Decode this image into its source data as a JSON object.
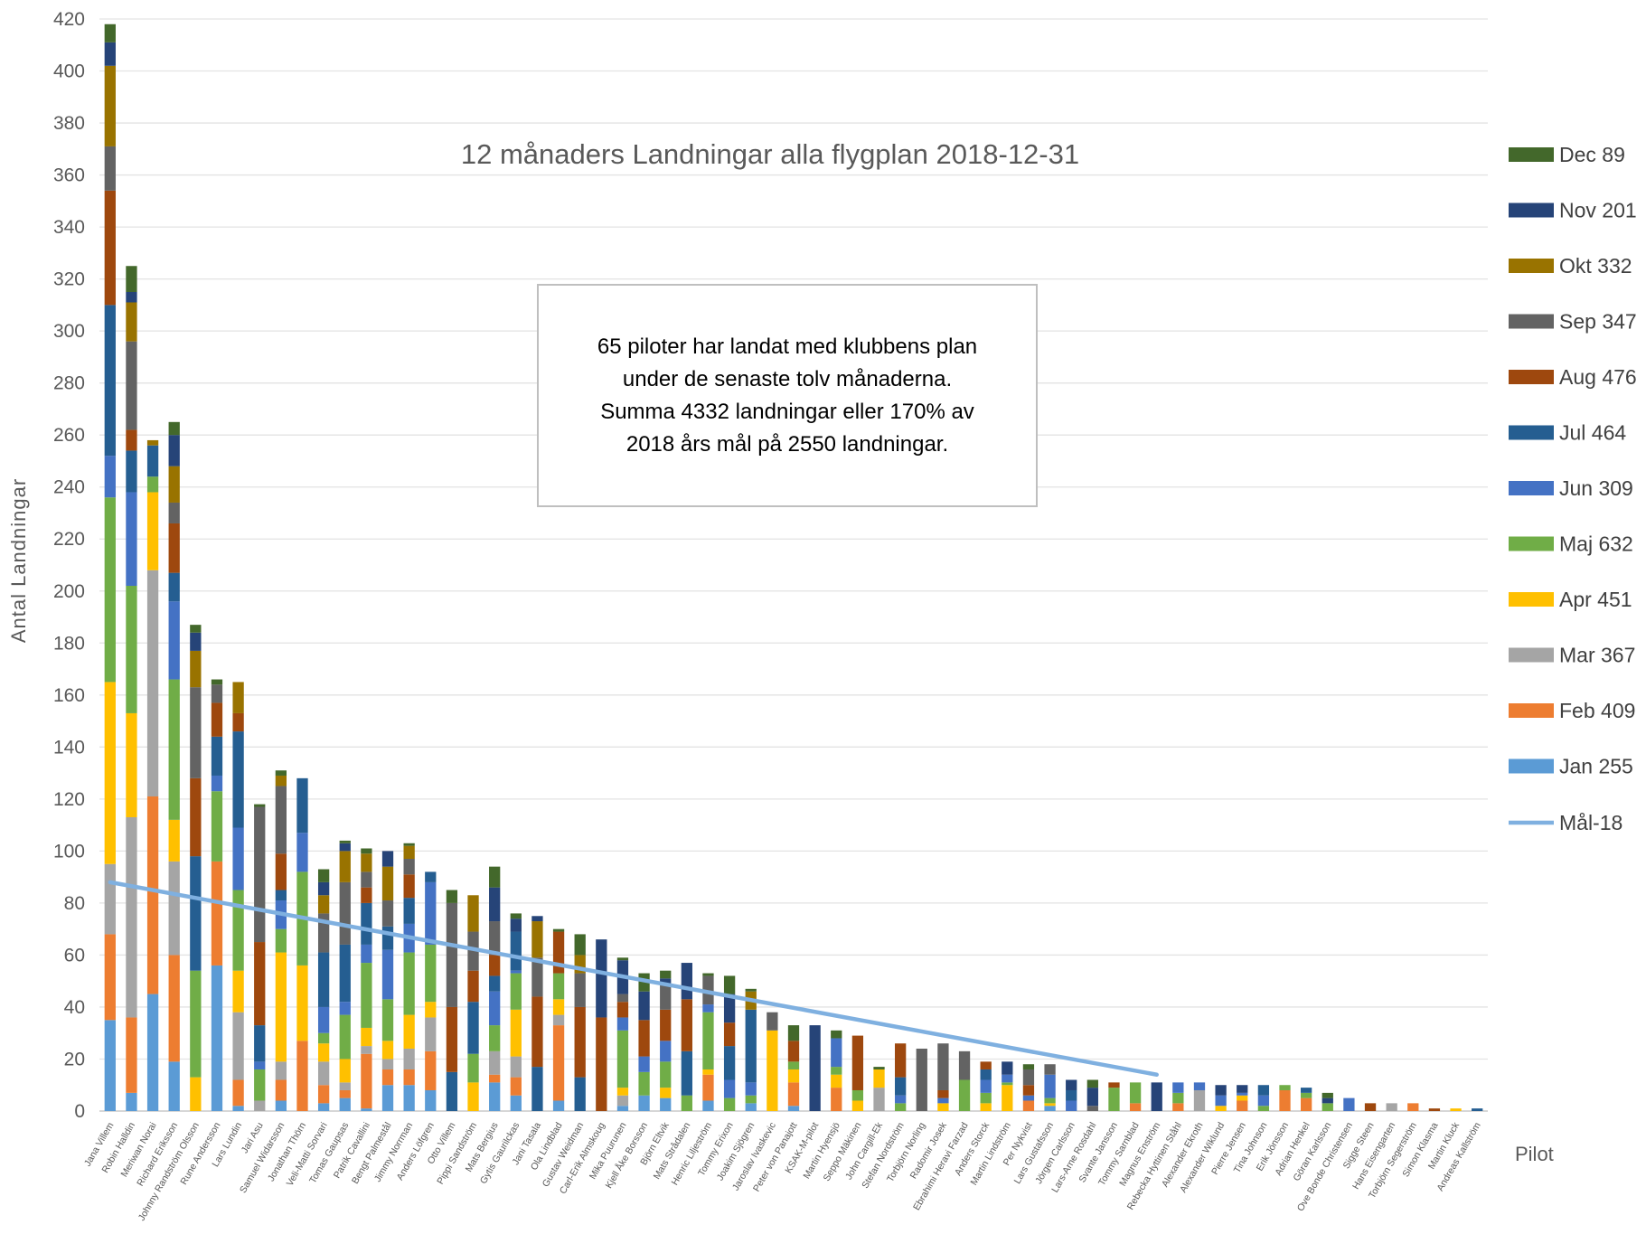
{
  "chart_data": {
    "type": "bar",
    "stacked": true,
    "title": "12 månaders Landningar alla flygplan 2018-12-31",
    "xlabel": "Pilot",
    "ylabel": "Antal Landningar",
    "ylim": [
      0,
      420
    ],
    "yticks": [
      0,
      20,
      40,
      60,
      80,
      100,
      120,
      140,
      160,
      180,
      200,
      220,
      240,
      260,
      280,
      300,
      320,
      340,
      360,
      380,
      400,
      420
    ],
    "grid": true,
    "legend_position": "right",
    "annotation": [
      "65 piloter har landat med klubbens plan",
      "under de senaste tolv månaderna.",
      "Summa 4332 landningar eller 170% av",
      "2018 års mål på 2550 landningar."
    ],
    "categories": [
      "Jana Villem",
      "Robin Halldin",
      "Meriwan Norai",
      "Richard Eriksson",
      "Johnny Randström Olsson",
      "Rune Andersson",
      "Lars Lundin",
      "Jari Asu",
      "Samuel Widarsson",
      "Jonathan Thörn",
      "Veli-Matti Sorvari",
      "Tomas Gaupsas",
      "Patrik Cavallini",
      "Bengt Palmestål",
      "Jimmy Norrman",
      "Anders Löfgren",
      "Otto Villem",
      "Pippi Sandström",
      "Mats Bergius",
      "Gytis Gaurilckas",
      "Jani Tasala",
      "Ola Lindblad",
      "Gustav Weidman",
      "Carl-Erik Almskoug",
      "Mika Puurunen",
      "Kjell Åke Borsson",
      "Björn Eltvik",
      "Mats Strådalen",
      "Henric Liljeström",
      "Tommy Erixon",
      "Joakim Sjögren",
      "Jaroslav Ivaskevic",
      "Peter von Panajott",
      "KSAK-M-pilot",
      "Martin Hyensjö",
      "Seppo Mäkinen",
      "John Cargill-Ek",
      "Stefan Nordström",
      "Torbjörn Norling",
      "Radomir Josek",
      "Ebrahimi Heravi Farzad",
      "Anders Storck",
      "Martin Lindström",
      "Per Nykvist",
      "Lars Gustafsson",
      "Jörgen Carlsson",
      "Lars-Arne Rosdahl",
      "Svante Jansson",
      "Tommy Sarnblad",
      "Magnus Enström",
      "Rebecka Hyttinen Ståhl",
      "Alexander Ekroth",
      "Alexander Wiklund",
      "Pierre Jensen",
      "Tina Johnson",
      "Erik Jönsson",
      "Adrian Henkel",
      "Göran Karlsson",
      "Ove Bonde Christensen",
      "Sigge Steen",
      "Hans Eisengarten",
      "Torbjörn Segerström",
      "Simon Klasma",
      "Martin Kluck",
      "Andreas Kallström"
    ],
    "series": [
      {
        "name": "Jan 255",
        "color": "#5b9bd5",
        "values": [
          35,
          7,
          45,
          19,
          0,
          56,
          2,
          0,
          4,
          0,
          3,
          5,
          1,
          10,
          10,
          8,
          0,
          0,
          11,
          6,
          0,
          4,
          0,
          0,
          2,
          6,
          5,
          0,
          4,
          0,
          3,
          0,
          2,
          0,
          0,
          0,
          0,
          0,
          0,
          0,
          0,
          0,
          0,
          0,
          2,
          0,
          0,
          0,
          0,
          0,
          0,
          0,
          0,
          0,
          0,
          0,
          0,
          0,
          0,
          0,
          0,
          0,
          0,
          0,
          0
        ]
      },
      {
        "name": "Feb 409",
        "color": "#ed7d31",
        "values": [
          33,
          29,
          76,
          41,
          0,
          40,
          10,
          0,
          8,
          27,
          7,
          3,
          21,
          6,
          6,
          15,
          0,
          0,
          3,
          7,
          0,
          29,
          0,
          0,
          0,
          0,
          0,
          0,
          10,
          0,
          0,
          0,
          9,
          0,
          9,
          0,
          0,
          0,
          0,
          0,
          0,
          0,
          0,
          4,
          0,
          0,
          0,
          0,
          3,
          0,
          3,
          0,
          0,
          4,
          0,
          8,
          5,
          0,
          0,
          0,
          0,
          3,
          0,
          0,
          0
        ]
      },
      {
        "name": "Mar 367",
        "color": "#a5a5a5",
        "values": [
          27,
          77,
          87,
          36,
          0,
          0,
          26,
          4,
          7,
          0,
          9,
          3,
          3,
          4,
          8,
          13,
          0,
          0,
          9,
          8,
          0,
          4,
          0,
          0,
          4,
          0,
          0,
          0,
          0,
          0,
          0,
          0,
          0,
          0,
          0,
          0,
          9,
          0,
          0,
          0,
          0,
          0,
          0,
          0,
          0,
          0,
          0,
          0,
          0,
          0,
          0,
          8,
          0,
          0,
          0,
          0,
          0,
          0,
          0,
          0,
          3,
          0,
          0,
          0,
          0
        ]
      },
      {
        "name": "Apr 451",
        "color": "#ffc000",
        "values": [
          70,
          40,
          30,
          16,
          13,
          0,
          16,
          0,
          42,
          29,
          7,
          9,
          7,
          7,
          13,
          6,
          0,
          11,
          0,
          18,
          0,
          6,
          0,
          0,
          3,
          0,
          4,
          0,
          2,
          0,
          0,
          31,
          5,
          0,
          5,
          4,
          7,
          0,
          0,
          3,
          0,
          3,
          10,
          0,
          1,
          0,
          0,
          0,
          0,
          0,
          0,
          0,
          2,
          2,
          0,
          0,
          0,
          0,
          0,
          0,
          0,
          0,
          0,
          1,
          0
        ]
      },
      {
        "name": "Maj 632",
        "color": "#70ad47",
        "values": [
          71,
          49,
          6,
          54,
          41,
          27,
          31,
          12,
          9,
          36,
          4,
          17,
          25,
          16,
          24,
          22,
          0,
          11,
          10,
          14,
          0,
          10,
          0,
          0,
          22,
          9,
          10,
          6,
          22,
          5,
          3,
          0,
          3,
          0,
          3,
          4,
          0,
          3,
          0,
          0,
          12,
          4,
          1,
          0,
          2,
          0,
          0,
          9,
          8,
          0,
          4,
          0,
          0,
          0,
          2,
          2,
          2,
          3,
          0,
          0,
          0,
          0,
          0,
          0,
          0
        ]
      },
      {
        "name": "Jun 309",
        "color": "#4472c4",
        "values": [
          16,
          36,
          0,
          30,
          0,
          6,
          24,
          3,
          11,
          15,
          10,
          5,
          7,
          19,
          11,
          24,
          0,
          0,
          13,
          1,
          0,
          0,
          0,
          0,
          5,
          6,
          8,
          0,
          3,
          7,
          5,
          0,
          0,
          0,
          11,
          0,
          0,
          3,
          0,
          2,
          0,
          5,
          3,
          2,
          9,
          4,
          0,
          0,
          0,
          0,
          4,
          3,
          4,
          1,
          4,
          0,
          0,
          0,
          5,
          0,
          0,
          0,
          0,
          0,
          0
        ]
      },
      {
        "name": "Jul 464",
        "color": "#255e91",
        "values": [
          58,
          16,
          12,
          11,
          44,
          15,
          37,
          14,
          4,
          21,
          21,
          22,
          16,
          9,
          10,
          4,
          15,
          20,
          6,
          15,
          17,
          0,
          13,
          0,
          0,
          0,
          0,
          17,
          0,
          13,
          28,
          0,
          0,
          0,
          0,
          0,
          0,
          7,
          0,
          0,
          0,
          4,
          0,
          0,
          0,
          4,
          0,
          0,
          0,
          0,
          0,
          0,
          0,
          0,
          4,
          0,
          2,
          0,
          0,
          0,
          0,
          0,
          0,
          0,
          1
        ]
      },
      {
        "name": "Aug 476",
        "color": "#9e480e",
        "values": [
          44,
          8,
          0,
          19,
          30,
          13,
          7,
          32,
          14,
          0,
          0,
          0,
          6,
          0,
          9,
          0,
          25,
          12,
          8,
          0,
          27,
          16,
          27,
          36,
          6,
          14,
          12,
          20,
          0,
          9,
          0,
          0,
          8,
          0,
          0,
          21,
          0,
          13,
          0,
          3,
          0,
          3,
          0,
          4,
          0,
          0,
          0,
          2,
          0,
          0,
          0,
          0,
          0,
          0,
          0,
          0,
          0,
          0,
          0,
          3,
          0,
          0,
          1,
          0,
          0
        ]
      },
      {
        "name": "Sep 347",
        "color": "#636363",
        "values": [
          17,
          34,
          0,
          8,
          35,
          7,
          0,
          52,
          26,
          0,
          15,
          24,
          6,
          10,
          6,
          0,
          40,
          15,
          13,
          0,
          15,
          0,
          13,
          0,
          3,
          0,
          10,
          0,
          11,
          0,
          0,
          7,
          0,
          0,
          0,
          0,
          0,
          0,
          24,
          18,
          11,
          0,
          0,
          6,
          4,
          0,
          2,
          0,
          0,
          0,
          0,
          0,
          0,
          0,
          0,
          0,
          0,
          0,
          0,
          0,
          0,
          0,
          0,
          0,
          0
        ]
      },
      {
        "name": "Okt 332",
        "color": "#997300",
        "values": [
          31,
          15,
          2,
          14,
          14,
          0,
          12,
          0,
          4,
          0,
          7,
          12,
          7,
          13,
          5,
          0,
          0,
          14,
          0,
          0,
          14,
          0,
          7,
          0,
          0,
          0,
          0,
          0,
          0,
          0,
          7,
          0,
          0,
          0,
          0,
          0,
          0,
          0,
          0,
          0,
          0,
          0,
          0,
          0,
          0,
          0,
          0,
          0,
          0,
          0,
          0,
          0,
          0,
          0,
          0,
          0,
          0,
          0,
          0,
          0,
          0,
          0,
          0,
          0,
          0
        ]
      },
      {
        "name": "Nov 201",
        "color": "#264478",
        "values": [
          9,
          4,
          0,
          12,
          7,
          0,
          0,
          0,
          0,
          0,
          5,
          3,
          0,
          6,
          0,
          0,
          0,
          0,
          13,
          5,
          2,
          0,
          0,
          30,
          13,
          11,
          2,
          14,
          0,
          11,
          0,
          0,
          0,
          33,
          0,
          0,
          0,
          0,
          0,
          0,
          0,
          0,
          5,
          0,
          0,
          4,
          7,
          0,
          0,
          11,
          0,
          0,
          4,
          3,
          0,
          0,
          0,
          2,
          0,
          0,
          0,
          0,
          0,
          0,
          0
        ]
      },
      {
        "name": "Dec 89",
        "color": "#43682b",
        "values": [
          7,
          10,
          0,
          5,
          3,
          2,
          0,
          1,
          2,
          0,
          5,
          1,
          2,
          0,
          1,
          0,
          5,
          0,
          8,
          2,
          0,
          1,
          8,
          0,
          1,
          7,
          3,
          0,
          1,
          7,
          1,
          0,
          6,
          0,
          3,
          0,
          1,
          0,
          0,
          0,
          0,
          0,
          0,
          2,
          0,
          0,
          3,
          0,
          0,
          0,
          0,
          0,
          0,
          0,
          0,
          0,
          0,
          2,
          0,
          0,
          0,
          0,
          0,
          0,
          0
        ]
      }
    ],
    "target_line": {
      "name": "Mål-18",
      "color": "#7fb0e0",
      "start": 88,
      "end": 14,
      "first_index": 0,
      "last_index": 49
    }
  }
}
